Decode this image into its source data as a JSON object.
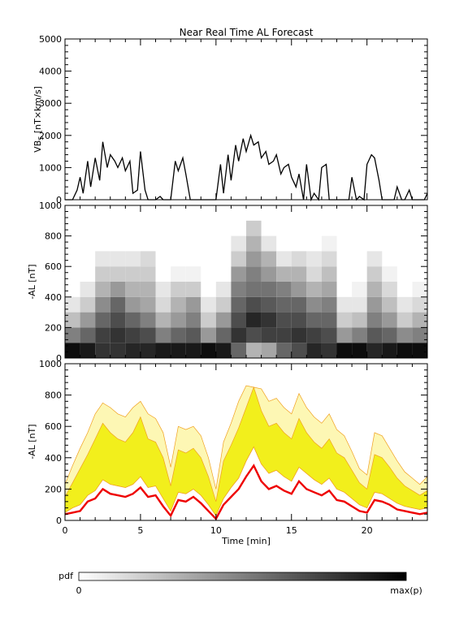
{
  "title": "Near Real Time AL Forecast",
  "colors": {
    "background": "#ffffff",
    "axis": "#000000",
    "median": "#ee0000",
    "band_inner": "#f2ef1c",
    "band_outer": "#fdf7b4",
    "band_edge": "#f0a020"
  },
  "chart_data": [
    {
      "type": "line",
      "panel": "top",
      "ylabel_main": "VB",
      "ylabel_sub": "S",
      "ylabel_rest": " [nT×km/s]",
      "xlim": [
        0,
        24
      ],
      "ylim": [
        0,
        5000
      ],
      "yticks": [
        "0",
        "1000",
        "2000",
        "3000",
        "4000",
        "5000"
      ],
      "grid": false,
      "x": [
        0,
        0.5,
        0.8,
        1.0,
        1.2,
        1.5,
        1.7,
        2.0,
        2.3,
        2.5,
        2.8,
        3.0,
        3.3,
        3.5,
        3.8,
        4.0,
        4.3,
        4.5,
        4.8,
        5.0,
        5.3,
        5.5,
        5.8,
        6.0,
        6.3,
        6.5,
        6.8,
        7.0,
        7.3,
        7.5,
        7.8,
        8.0,
        8.3,
        8.5,
        8.8,
        9.0,
        9.3,
        9.5,
        9.8,
        10.0,
        10.3,
        10.5,
        10.8,
        11.0,
        11.3,
        11.5,
        11.8,
        12.0,
        12.3,
        12.5,
        12.8,
        13.0,
        13.3,
        13.5,
        13.8,
        14.0,
        14.3,
        14.5,
        14.8,
        15.0,
        15.3,
        15.5,
        15.8,
        16.0,
        16.3,
        16.5,
        16.8,
        17.0,
        17.3,
        17.5,
        17.8,
        18.0,
        18.3,
        18.5,
        18.8,
        19.0,
        19.3,
        19.5,
        19.8,
        20.0,
        20.3,
        20.5,
        20.8,
        21.0,
        21.3,
        21.5,
        21.8,
        22.0,
        22.3,
        22.5,
        22.8,
        23.0,
        23.3,
        23.5,
        23.8,
        24.0
      ],
      "y": [
        0,
        0,
        300,
        700,
        200,
        1200,
        400,
        1300,
        600,
        1800,
        1000,
        1400,
        1200,
        1000,
        1300,
        900,
        1200,
        200,
        300,
        1500,
        300,
        0,
        0,
        0,
        100,
        0,
        0,
        0,
        1200,
        900,
        1300,
        800,
        0,
        0,
        0,
        0,
        0,
        0,
        0,
        0,
        1100,
        200,
        1400,
        600,
        1700,
        1200,
        1900,
        1500,
        2000,
        1700,
        1800,
        1300,
        1500,
        1100,
        1200,
        1400,
        800,
        1000,
        1100,
        700,
        400,
        800,
        0,
        1100,
        0,
        200,
        0,
        1000,
        1100,
        0,
        0,
        0,
        0,
        0,
        0,
        700,
        0,
        100,
        0,
        1100,
        1400,
        1300,
        600,
        0,
        0,
        0,
        0,
        400,
        0,
        0,
        300,
        0,
        0,
        0,
        0,
        200
      ],
      "color": "#000000"
    },
    {
      "type": "heatmap",
      "panel": "middle",
      "ylabel": "-AL [nT]",
      "xlim": [
        0,
        24
      ],
      "ylim": [
        0,
        1000
      ],
      "yticks": [
        "0",
        "200",
        "400",
        "600",
        "800",
        "1000"
      ],
      "colormap": "white-to-black probability density",
      "x_centers": [
        0.5,
        1.5,
        2.5,
        3.5,
        4.5,
        5.5,
        6.5,
        7.5,
        8.5,
        9.5,
        10.5,
        11.5,
        12.5,
        13.5,
        14.5,
        15.5,
        16.5,
        17.5,
        18.5,
        19.5,
        20.5,
        21.5,
        22.5,
        23.5
      ],
      "y_centers": [
        50,
        150,
        250,
        350,
        450,
        550,
        650,
        750,
        850
      ],
      "density": [
        [
          0.95,
          0.5,
          0.25,
          0.1,
          0,
          0,
          0,
          0,
          0
        ],
        [
          0.9,
          0.6,
          0.4,
          0.2,
          0.1,
          0,
          0,
          0,
          0
        ],
        [
          0.8,
          0.75,
          0.6,
          0.45,
          0.3,
          0.2,
          0.1,
          0,
          0
        ],
        [
          0.8,
          0.8,
          0.7,
          0.6,
          0.4,
          0.2,
          0.1,
          0,
          0
        ],
        [
          0.85,
          0.75,
          0.6,
          0.4,
          0.3,
          0.2,
          0.1,
          0,
          0
        ],
        [
          0.85,
          0.7,
          0.5,
          0.35,
          0.3,
          0.2,
          0.15,
          0,
          0
        ],
        [
          0.9,
          0.5,
          0.3,
          0.15,
          0.1,
          0,
          0,
          0,
          0
        ],
        [
          0.9,
          0.6,
          0.4,
          0.3,
          0.2,
          0.05,
          0,
          0,
          0
        ],
        [
          0.9,
          0.65,
          0.5,
          0.4,
          0.2,
          0.05,
          0,
          0,
          0
        ],
        [
          0.95,
          0.4,
          0.2,
          0.1,
          0,
          0,
          0,
          0,
          0
        ],
        [
          0.9,
          0.6,
          0.4,
          0.2,
          0.1,
          0,
          0,
          0,
          0
        ],
        [
          0.6,
          0.8,
          0.7,
          0.6,
          0.5,
          0.4,
          0.2,
          0.1,
          0
        ],
        [
          0.3,
          0.7,
          0.85,
          0.7,
          0.55,
          0.5,
          0.4,
          0.3,
          0.2
        ],
        [
          0.35,
          0.75,
          0.8,
          0.65,
          0.55,
          0.4,
          0.3,
          0.1,
          0
        ],
        [
          0.6,
          0.75,
          0.7,
          0.6,
          0.5,
          0.3,
          0.1,
          0,
          0
        ],
        [
          0.7,
          0.8,
          0.7,
          0.6,
          0.4,
          0.3,
          0.15,
          0,
          0
        ],
        [
          0.85,
          0.75,
          0.6,
          0.45,
          0.3,
          0.15,
          0.1,
          0,
          0
        ],
        [
          0.8,
          0.7,
          0.6,
          0.5,
          0.35,
          0.25,
          0.15,
          0.05,
          0
        ],
        [
          0.95,
          0.4,
          0.2,
          0.1,
          0,
          0,
          0,
          0,
          0
        ],
        [
          0.95,
          0.5,
          0.25,
          0.1,
          0.05,
          0,
          0,
          0,
          0
        ],
        [
          0.85,
          0.65,
          0.5,
          0.4,
          0.3,
          0.2,
          0.1,
          0,
          0
        ],
        [
          0.9,
          0.6,
          0.4,
          0.25,
          0.15,
          0.05,
          0,
          0,
          0
        ],
        [
          0.95,
          0.45,
          0.2,
          0.1,
          0,
          0,
          0,
          0,
          0
        ],
        [
          0.95,
          0.5,
          0.3,
          0.15,
          0.05,
          0,
          0,
          0,
          0
        ]
      ]
    },
    {
      "type": "area",
      "panel": "bottom",
      "ylabel": "-AL [nT]",
      "xlabel": "Time [min]",
      "xlim": [
        0,
        24
      ],
      "ylim": [
        0,
        1000
      ],
      "yticks": [
        "0",
        "200",
        "400",
        "600",
        "800",
        "1000"
      ],
      "xticks": [
        "0",
        "5",
        "10",
        "15",
        "20"
      ],
      "x": [
        0,
        0.5,
        1.0,
        1.5,
        2.0,
        2.5,
        3.0,
        3.5,
        4.0,
        4.5,
        5.0,
        5.5,
        6.0,
        6.5,
        7.0,
        7.5,
        8.0,
        8.5,
        9.0,
        9.5,
        10.0,
        10.5,
        11.0,
        11.5,
        12.0,
        12.5,
        13.0,
        13.5,
        14.0,
        14.5,
        15.0,
        15.5,
        16.0,
        16.5,
        17.0,
        17.5,
        18.0,
        18.5,
        19.0,
        19.5,
        20.0,
        20.5,
        21.0,
        21.5,
        22.0,
        22.5,
        23.0,
        23.5,
        24.0
      ],
      "median": [
        40,
        50,
        60,
        120,
        140,
        200,
        170,
        160,
        150,
        170,
        210,
        150,
        160,
        90,
        30,
        130,
        120,
        150,
        110,
        60,
        10,
        100,
        150,
        200,
        280,
        350,
        250,
        200,
        220,
        190,
        170,
        250,
        200,
        180,
        160,
        190,
        130,
        120,
        90,
        60,
        50,
        130,
        120,
        100,
        70,
        60,
        50,
        40,
        50
      ],
      "lower": [
        50,
        80,
        100,
        160,
        190,
        260,
        230,
        220,
        210,
        230,
        280,
        210,
        220,
        140,
        60,
        180,
        170,
        200,
        160,
        100,
        30,
        140,
        210,
        270,
        380,
        470,
        360,
        300,
        320,
        280,
        250,
        340,
        300,
        260,
        230,
        270,
        200,
        180,
        140,
        100,
        80,
        180,
        170,
        140,
        110,
        90,
        80,
        70,
        80
      ],
      "upper": [
        150,
        240,
        330,
        420,
        520,
        620,
        560,
        520,
        500,
        560,
        660,
        520,
        500,
        400,
        220,
        450,
        430,
        460,
        400,
        280,
        120,
        380,
        480,
        590,
        720,
        850,
        700,
        600,
        620,
        560,
        520,
        650,
        560,
        500,
        460,
        520,
        430,
        400,
        320,
        240,
        200,
        420,
        400,
        340,
        270,
        220,
        190,
        160,
        190
      ],
      "outer": [
        230,
        350,
        460,
        560,
        680,
        750,
        720,
        680,
        660,
        720,
        760,
        680,
        650,
        560,
        340,
        600,
        580,
        600,
        540,
        400,
        200,
        500,
        620,
        760,
        860,
        850,
        840,
        760,
        780,
        720,
        680,
        810,
        720,
        660,
        620,
        680,
        580,
        540,
        440,
        330,
        290,
        560,
        540,
        460,
        380,
        310,
        270,
        230,
        280
      ]
    }
  ],
  "colorbar": {
    "label": "pdf",
    "min_label": "0",
    "max_label": "max(p)"
  }
}
